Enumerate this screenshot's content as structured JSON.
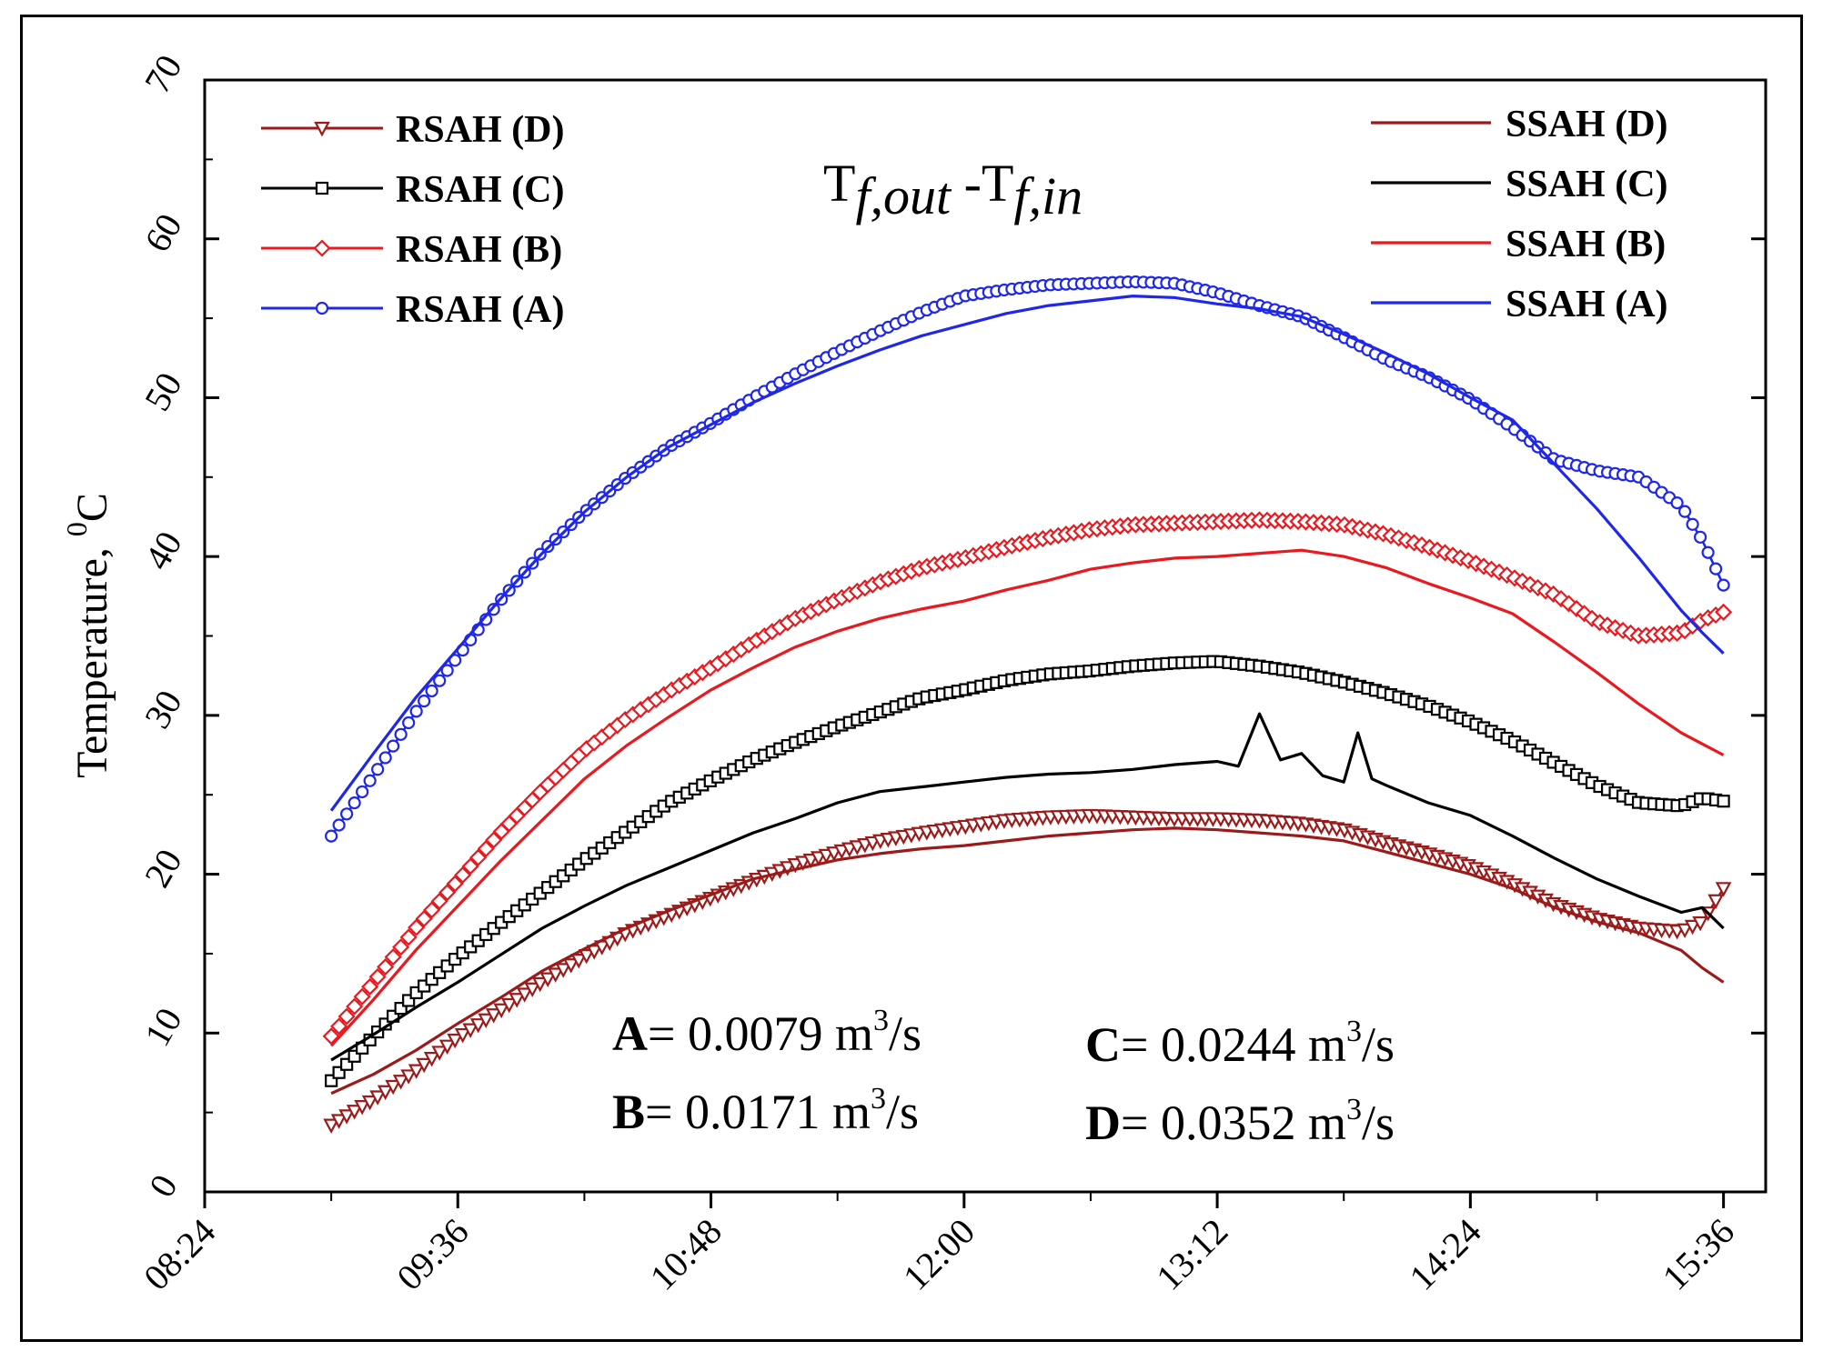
{
  "chart_data": {
    "type": "line",
    "title": "Tf,out -Tf,in",
    "title_parts": {
      "t1": "T",
      "s1": "f,out",
      "mid": " -T",
      "s2": "f,in"
    },
    "xlabel": "",
    "ylabel": "Temperature, ⁰C",
    "ylabel_parts": {
      "text": "Temperature, ",
      "sup": "0",
      "unit": "C"
    },
    "x_unit": "minutes since 00:00",
    "xlim": [
      504,
      948
    ],
    "ylim": [
      0,
      70
    ],
    "x_ticks": [
      {
        "value": 504,
        "label": "08:24"
      },
      {
        "value": 576,
        "label": "09:36"
      },
      {
        "value": 648,
        "label": "10:48"
      },
      {
        "value": 720,
        "label": "12:00"
      },
      {
        "value": 792,
        "label": "13:12"
      },
      {
        "value": 864,
        "label": "14:24"
      },
      {
        "value": 936,
        "label": "15:36"
      }
    ],
    "y_ticks": [
      0,
      10,
      20,
      30,
      40,
      50,
      60,
      70
    ],
    "grid": false,
    "series": [
      {
        "name": "RSAH (D)",
        "color": "#9b1b1b",
        "marker": "triangle-down",
        "x": [
          540,
          552,
          564,
          576,
          588,
          600,
          612,
          624,
          636,
          648,
          660,
          672,
          684,
          696,
          708,
          720,
          732,
          744,
          756,
          768,
          780,
          792,
          804,
          816,
          828,
          840,
          852,
          864,
          876,
          888,
          900,
          912,
          924,
          930,
          936
        ],
        "values": [
          4.2,
          5.8,
          7.6,
          9.7,
          11.4,
          13.2,
          14.8,
          16.3,
          17.4,
          18.5,
          19.6,
          20.6,
          21.4,
          22.1,
          22.6,
          23.0,
          23.4,
          23.6,
          23.7,
          23.6,
          23.5,
          23.5,
          23.4,
          23.2,
          22.8,
          22.0,
          21.3,
          20.5,
          19.4,
          18.1,
          17.2,
          16.6,
          16.4,
          17.0,
          19.1
        ]
      },
      {
        "name": "RSAH (C)",
        "color": "#000000",
        "marker": "square",
        "x": [
          540,
          552,
          564,
          576,
          588,
          600,
          612,
          624,
          636,
          648,
          660,
          672,
          684,
          696,
          708,
          720,
          732,
          744,
          756,
          768,
          780,
          792,
          804,
          816,
          828,
          840,
          852,
          864,
          876,
          888,
          900,
          912,
          924,
          930,
          936
        ],
        "values": [
          7.0,
          9.8,
          12.5,
          14.8,
          16.9,
          18.9,
          20.9,
          22.7,
          24.5,
          25.9,
          27.2,
          28.3,
          29.3,
          30.2,
          31.1,
          31.6,
          32.2,
          32.6,
          32.8,
          33.1,
          33.3,
          33.4,
          33.1,
          32.7,
          32.1,
          31.4,
          30.6,
          29.6,
          28.4,
          27.0,
          25.6,
          24.5,
          24.3,
          24.8,
          24.6
        ]
      },
      {
        "name": "RSAH (B)",
        "color": "#e8191f",
        "marker": "diamond",
        "x": [
          540,
          552,
          564,
          576,
          588,
          600,
          612,
          624,
          636,
          648,
          660,
          672,
          684,
          696,
          708,
          720,
          732,
          744,
          756,
          768,
          780,
          792,
          804,
          816,
          828,
          840,
          852,
          864,
          876,
          888,
          900,
          912,
          924,
          930,
          936
        ],
        "values": [
          9.8,
          13.2,
          16.6,
          19.6,
          22.6,
          25.3,
          27.8,
          29.8,
          31.5,
          33.0,
          34.6,
          36.1,
          37.3,
          38.4,
          39.3,
          39.9,
          40.6,
          41.2,
          41.7,
          42.0,
          42.1,
          42.2,
          42.3,
          42.2,
          42.0,
          41.4,
          40.6,
          39.7,
          38.7,
          37.6,
          35.9,
          35.0,
          35.2,
          36.0,
          36.5
        ]
      },
      {
        "name": "RSAH (A)",
        "color": "#1f27e8",
        "marker": "circle",
        "x": [
          540,
          552,
          564,
          576,
          588,
          600,
          612,
          624,
          636,
          648,
          660,
          672,
          684,
          696,
          708,
          720,
          732,
          744,
          756,
          768,
          780,
          792,
          804,
          816,
          828,
          840,
          852,
          864,
          876,
          888,
          900,
          912,
          924,
          930,
          936
        ],
        "values": [
          22.4,
          26.2,
          30.2,
          33.7,
          37.2,
          40.3,
          42.8,
          45.0,
          46.9,
          48.4,
          50.0,
          51.5,
          52.9,
          54.2,
          55.4,
          56.4,
          56.8,
          57.1,
          57.2,
          57.3,
          57.2,
          56.6,
          55.8,
          55.1,
          53.8,
          52.4,
          51.3,
          49.9,
          48.1,
          46.1,
          45.4,
          45.0,
          43.2,
          41.0,
          38.2
        ]
      },
      {
        "name": "SSAH (D)",
        "color": "#9b1b1b",
        "marker": "none",
        "x": [
          540,
          552,
          564,
          576,
          588,
          600,
          612,
          624,
          636,
          648,
          660,
          672,
          684,
          696,
          708,
          720,
          732,
          744,
          756,
          768,
          780,
          792,
          804,
          816,
          828,
          840,
          852,
          864,
          876,
          888,
          900,
          912,
          924,
          930,
          936
        ],
        "values": [
          6.2,
          7.4,
          8.9,
          10.6,
          12.2,
          13.9,
          15.3,
          16.6,
          17.7,
          18.7,
          19.7,
          20.3,
          20.9,
          21.3,
          21.6,
          21.8,
          22.1,
          22.4,
          22.6,
          22.8,
          22.9,
          22.8,
          22.6,
          22.4,
          22.1,
          21.4,
          20.7,
          20.0,
          19.1,
          17.9,
          17.0,
          16.3,
          15.2,
          14.1,
          13.2
        ]
      },
      {
        "name": "SSAH (C)",
        "color": "#000000",
        "marker": "none",
        "x": [
          540,
          552,
          564,
          576,
          588,
          600,
          612,
          624,
          636,
          648,
          660,
          672,
          684,
          696,
          708,
          720,
          732,
          744,
          756,
          768,
          780,
          792,
          798,
          804,
          810,
          816,
          822,
          828,
          832,
          836,
          840,
          852,
          864,
          876,
          888,
          900,
          912,
          924,
          930,
          936
        ],
        "values": [
          8.3,
          9.9,
          11.6,
          13.2,
          14.9,
          16.6,
          18.0,
          19.3,
          20.4,
          21.5,
          22.6,
          23.5,
          24.5,
          25.2,
          25.5,
          25.8,
          26.1,
          26.3,
          26.4,
          26.6,
          26.9,
          27.1,
          26.8,
          30.1,
          27.2,
          27.6,
          26.2,
          25.8,
          28.9,
          26.0,
          25.6,
          24.5,
          23.7,
          22.4,
          21.0,
          19.7,
          18.6,
          17.6,
          17.9,
          16.6
        ]
      },
      {
        "name": "SSAH (B)",
        "color": "#e8191f",
        "marker": "none",
        "x": [
          540,
          552,
          564,
          576,
          588,
          600,
          612,
          624,
          636,
          648,
          660,
          672,
          684,
          696,
          708,
          720,
          732,
          744,
          756,
          768,
          780,
          792,
          804,
          816,
          828,
          840,
          852,
          864,
          876,
          888,
          900,
          912,
          924,
          930,
          936
        ],
        "values": [
          9.2,
          12.1,
          15.2,
          18.0,
          20.8,
          23.4,
          26.0,
          28.1,
          29.9,
          31.6,
          33.0,
          34.3,
          35.3,
          36.1,
          36.7,
          37.2,
          37.9,
          38.5,
          39.2,
          39.6,
          39.9,
          40.0,
          40.2,
          40.4,
          40.0,
          39.3,
          38.3,
          37.4,
          36.4,
          34.6,
          32.7,
          30.7,
          28.9,
          28.2,
          27.5
        ]
      },
      {
        "name": "SSAH (A)",
        "color": "#1f27e8",
        "marker": "none",
        "x": [
          540,
          552,
          564,
          576,
          588,
          600,
          612,
          624,
          636,
          648,
          660,
          672,
          684,
          696,
          708,
          720,
          732,
          744,
          756,
          768,
          780,
          792,
          804,
          816,
          828,
          840,
          852,
          864,
          876,
          888,
          900,
          912,
          924,
          930,
          936
        ],
        "values": [
          24.0,
          27.6,
          31.1,
          34.2,
          37.3,
          40.2,
          42.8,
          45.0,
          46.9,
          48.3,
          49.7,
          50.9,
          52.0,
          53.0,
          53.9,
          54.6,
          55.3,
          55.8,
          56.1,
          56.4,
          56.3,
          55.9,
          55.6,
          55.1,
          54.0,
          52.8,
          51.5,
          50.0,
          48.6,
          45.8,
          43.0,
          39.9,
          36.6,
          35.2,
          33.9
        ]
      }
    ],
    "legend_left": [
      "RSAH (D)",
      "RSAH (C)",
      "RSAH (B)",
      "RSAH (A)"
    ],
    "legend_right": [
      "SSAH (D)",
      "SSAH (C)",
      "SSAH (B)",
      "SSAH (A)"
    ],
    "annotations": [
      {
        "label": "A",
        "value": "= 0.0079 m",
        "sup": "3",
        "unit": "/s"
      },
      {
        "label": "B",
        "value": "= 0.0171 m",
        "sup": "3",
        "unit": "/s"
      },
      {
        "label": "C",
        "value": "= 0.0244 m",
        "sup": "3",
        "unit": "/s"
      },
      {
        "label": "D",
        "value": "= 0.0352 m",
        "sup": "3",
        "unit": "/s"
      }
    ]
  }
}
